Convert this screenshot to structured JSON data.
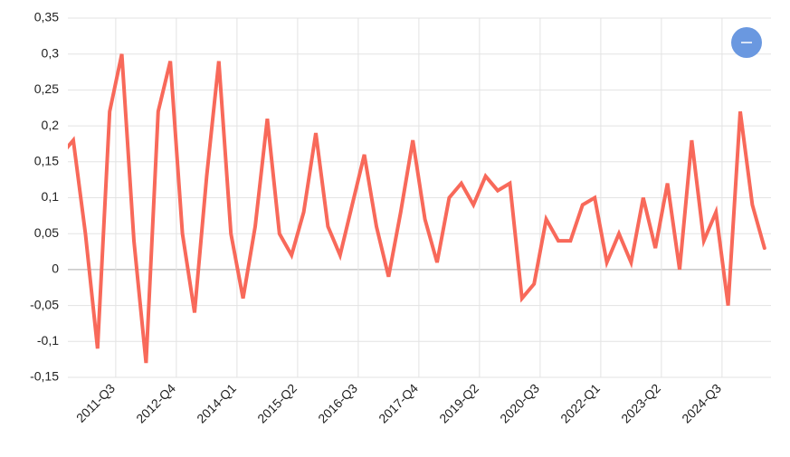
{
  "chart_data": {
    "type": "line",
    "color": "#f8695a",
    "grid": true,
    "categories": [
      null,
      null,
      null,
      null,
      "2011-Q3",
      null,
      null,
      null,
      null,
      "2012-Q4",
      null,
      null,
      null,
      null,
      "2014-Q1",
      null,
      null,
      null,
      null,
      "2015-Q2",
      null,
      null,
      null,
      null,
      "2016-Q3",
      null,
      null,
      null,
      null,
      "2017-Q4",
      null,
      null,
      null,
      null,
      "2019-Q2",
      null,
      null,
      null,
      null,
      "2020-Q3",
      null,
      null,
      null,
      null,
      "2022-Q1",
      null,
      null,
      null,
      null,
      "2023-Q2",
      null,
      null,
      null,
      null,
      "2024-Q3",
      null,
      null,
      null,
      null
    ],
    "values": [
      0.16,
      0.18,
      0.05,
      -0.11,
      0.22,
      0.3,
      0.04,
      -0.13,
      0.22,
      0.29,
      0.05,
      -0.06,
      0.13,
      0.29,
      0.05,
      -0.04,
      0.06,
      0.21,
      0.05,
      0.02,
      0.08,
      0.19,
      0.06,
      0.02,
      0.09,
      0.16,
      0.06,
      -0.01,
      0.08,
      0.18,
      0.07,
      0.01,
      0.1,
      0.12,
      0.09,
      0.13,
      0.11,
      0.12,
      -0.04,
      -0.02,
      0.07,
      0.04,
      0.04,
      0.09,
      0.1,
      0.01,
      0.05,
      0.01,
      0.1,
      0.03,
      0.12,
      0.0,
      0.18,
      0.04,
      0.08,
      -0.05,
      0.22,
      0.09,
      0.03
    ],
    "ylim": [
      -0.15,
      0.35
    ],
    "yticks": [
      {
        "value": -0.15,
        "label": "-0,15"
      },
      {
        "value": -0.1,
        "label": "-0,1"
      },
      {
        "value": -0.05,
        "label": "-0,05"
      },
      0,
      {
        "value": 0.05,
        "label": "0,05"
      },
      {
        "value": 0.1,
        "label": "0,1"
      },
      {
        "value": 0.15,
        "label": "0,15"
      },
      {
        "value": 0.2,
        "label": "0,2"
      },
      {
        "value": 0.25,
        "label": "0,25"
      },
      {
        "value": 0.3,
        "label": "0,3"
      },
      {
        "value": 0.35,
        "label": "0,35"
      }
    ]
  }
}
